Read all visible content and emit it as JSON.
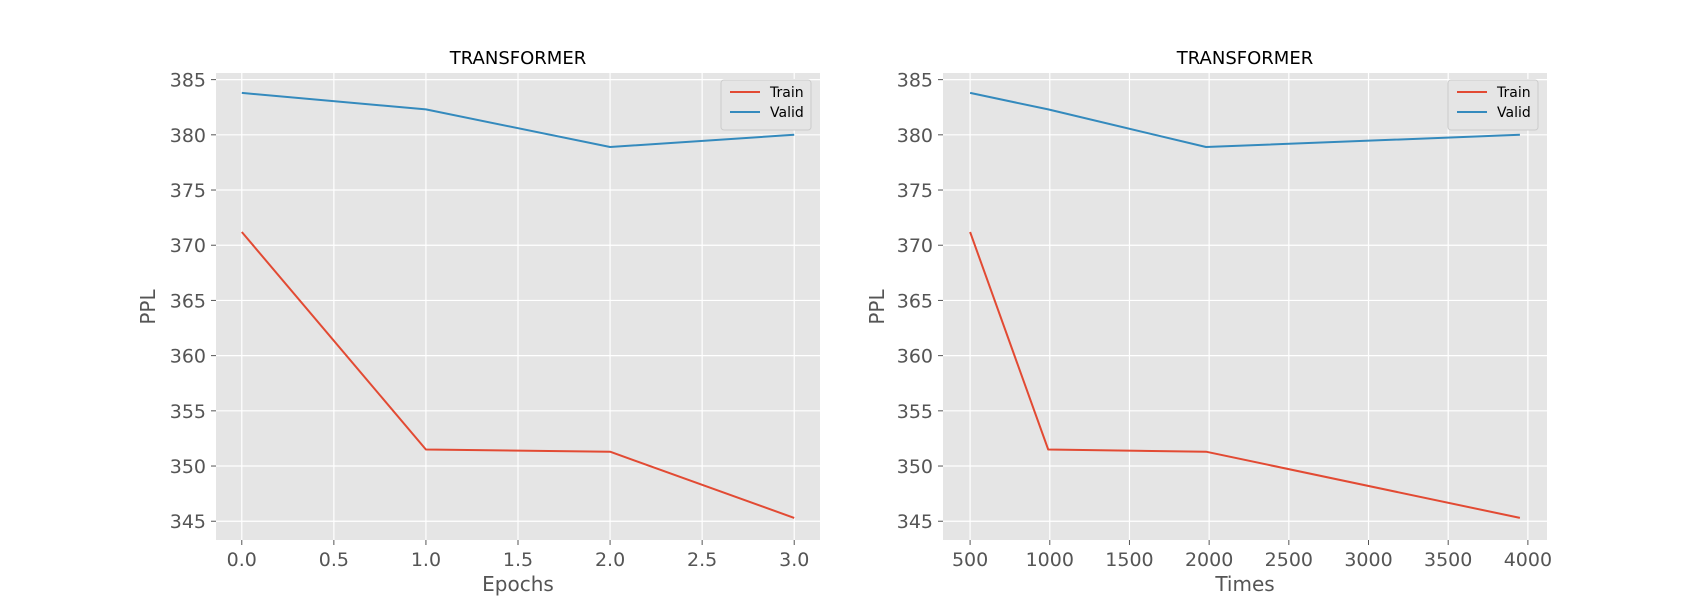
{
  "chart_data": [
    {
      "type": "line",
      "title": "TRANSFORMER",
      "xlabel": "Epochs",
      "ylabel": "PPL",
      "x": [
        0.0,
        1.0,
        2.0,
        3.0
      ],
      "xticks": [
        "0.0",
        "0.5",
        "1.0",
        "1.5",
        "2.0",
        "2.5",
        "3.0"
      ],
      "xlim": [
        -0.14,
        3.14
      ],
      "yticks": [
        "345",
        "350",
        "355",
        "360",
        "365",
        "370",
        "375",
        "380",
        "385"
      ],
      "ylim": [
        343.3,
        385.6
      ],
      "grid": true,
      "legend_position": "top-right",
      "series": [
        {
          "name": "Train",
          "color": "#E24A33",
          "values": [
            371.2,
            351.5,
            351.3,
            345.3
          ]
        },
        {
          "name": "Valid",
          "color": "#348ABD",
          "values": [
            383.8,
            382.3,
            378.9,
            380.0
          ]
        }
      ]
    },
    {
      "type": "line",
      "title": "TRANSFORMER",
      "xlabel": "Times",
      "ylabel": "PPL",
      "x": [
        500,
        990,
        1980,
        3950
      ],
      "xticks": [
        "500",
        "1000",
        "1500",
        "2000",
        "2500",
        "3000",
        "3500",
        "4000"
      ],
      "xlim": [
        330,
        4120
      ],
      "yticks": [
        "345",
        "350",
        "355",
        "360",
        "365",
        "370",
        "375",
        "380",
        "385"
      ],
      "ylim": [
        343.3,
        385.6
      ],
      "grid": true,
      "legend_position": "top-right",
      "series": [
        {
          "name": "Train",
          "color": "#E24A33",
          "values": [
            371.2,
            351.5,
            351.3,
            345.3
          ]
        },
        {
          "name": "Valid",
          "color": "#348ABD",
          "values": [
            383.8,
            382.3,
            378.9,
            380.0
          ]
        }
      ]
    }
  ]
}
